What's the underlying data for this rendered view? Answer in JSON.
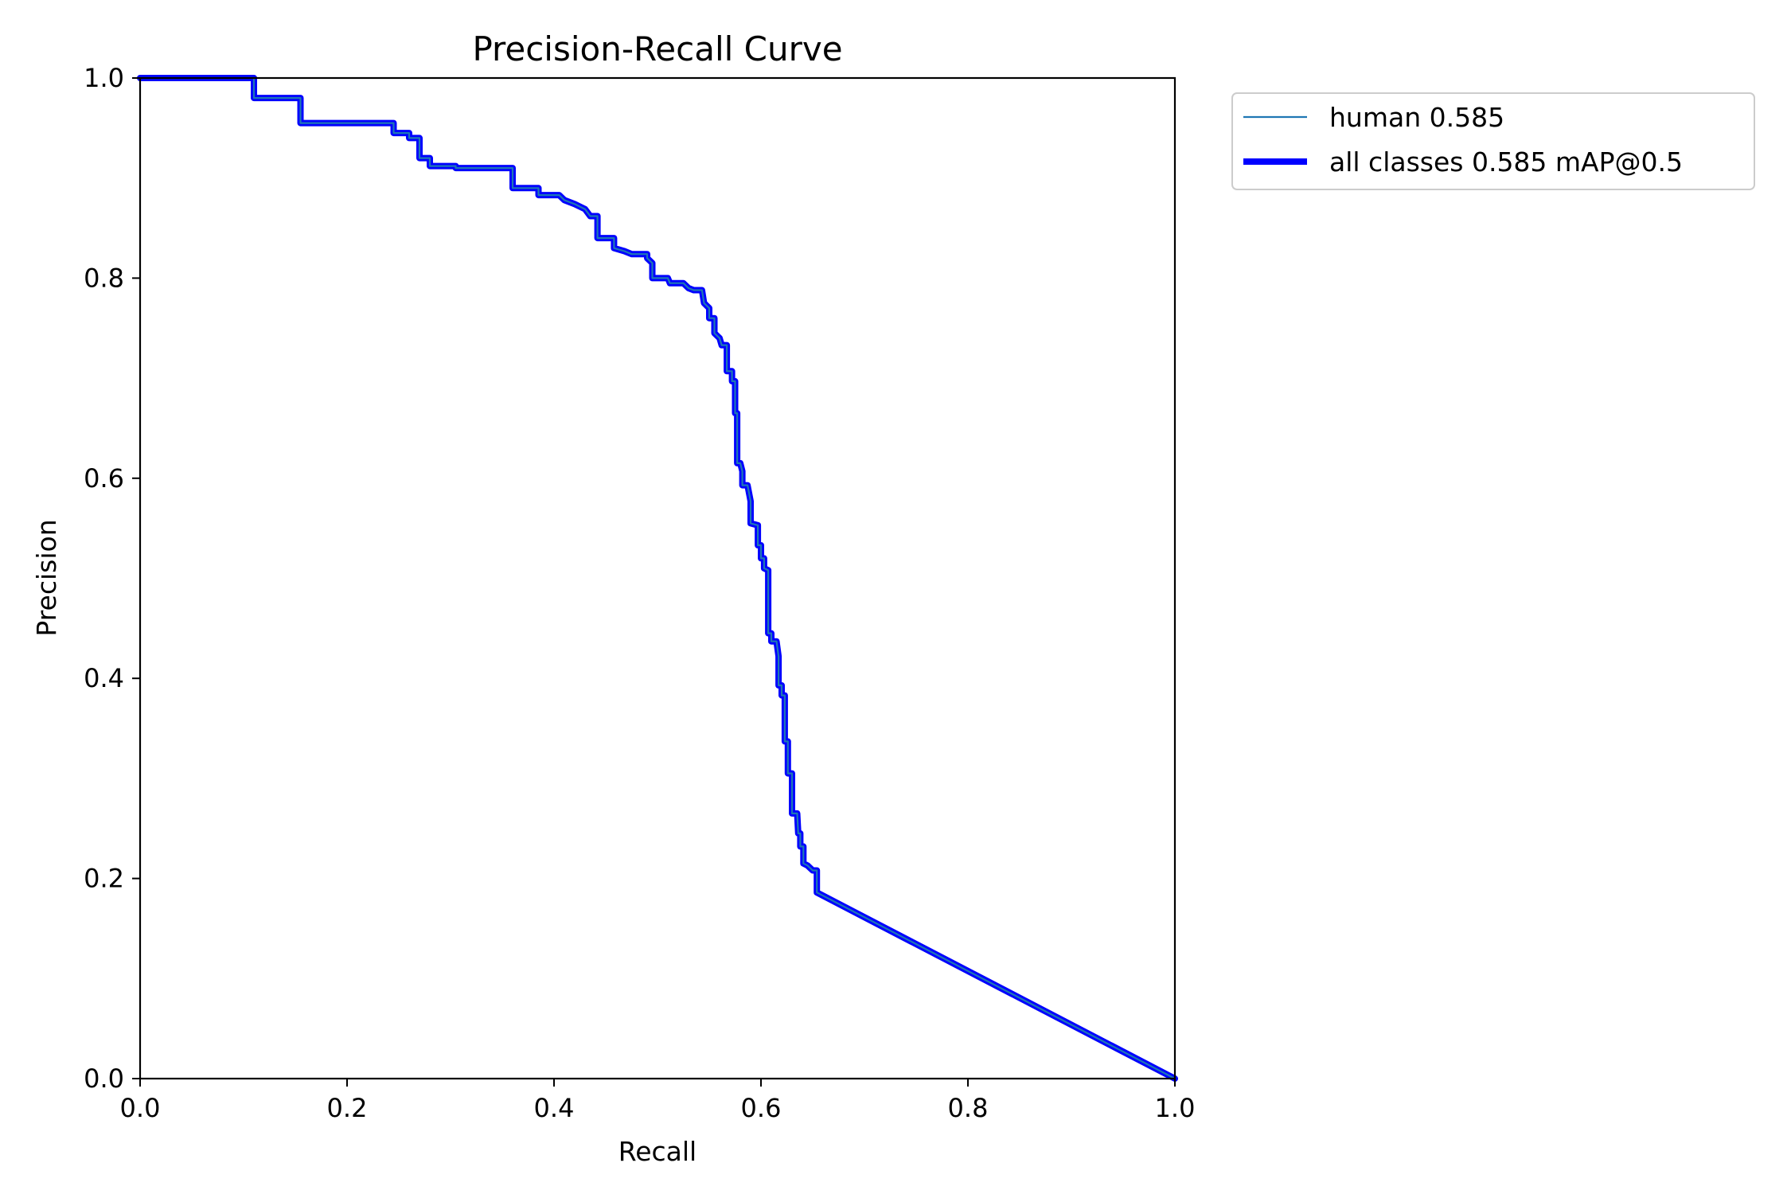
{
  "chart_data": {
    "type": "line",
    "title": "Precision-Recall Curve",
    "xlabel": "Recall",
    "ylabel": "Precision",
    "xlim": [
      0,
      1
    ],
    "ylim": [
      0,
      1
    ],
    "x_ticks": [
      "0.0",
      "0.2",
      "0.4",
      "0.6",
      "0.8",
      "1.0"
    ],
    "y_ticks": [
      "0.0",
      "0.2",
      "0.4",
      "0.6",
      "0.8",
      "1.0"
    ],
    "grid": false,
    "legend_position": "outside-top-right",
    "series": [
      {
        "name": "human 0.585",
        "color": "#1f77b4",
        "style": "thin",
        "points": [
          [
            0,
            1
          ],
          [
            0.11,
            1
          ],
          [
            0.11,
            0.98
          ],
          [
            0.155,
            0.98
          ],
          [
            0.155,
            0.955
          ],
          [
            0.245,
            0.955
          ],
          [
            0.245,
            0.945
          ],
          [
            0.26,
            0.945
          ],
          [
            0.26,
            0.94
          ],
          [
            0.27,
            0.94
          ],
          [
            0.27,
            0.92
          ],
          [
            0.28,
            0.92
          ],
          [
            0.28,
            0.912
          ],
          [
            0.305,
            0.912
          ],
          [
            0.305,
            0.91
          ],
          [
            0.36,
            0.91
          ],
          [
            0.36,
            0.89
          ],
          [
            0.385,
            0.89
          ],
          [
            0.385,
            0.883
          ],
          [
            0.405,
            0.883
          ],
          [
            0.41,
            0.878
          ],
          [
            0.42,
            0.874
          ],
          [
            0.43,
            0.869
          ],
          [
            0.435,
            0.862
          ],
          [
            0.442,
            0.862
          ],
          [
            0.442,
            0.84
          ],
          [
            0.458,
            0.84
          ],
          [
            0.458,
            0.83
          ],
          [
            0.468,
            0.827
          ],
          [
            0.475,
            0.824
          ],
          [
            0.49,
            0.824
          ],
          [
            0.49,
            0.82
          ],
          [
            0.495,
            0.815
          ],
          [
            0.495,
            0.8
          ],
          [
            0.51,
            0.8
          ],
          [
            0.512,
            0.795
          ],
          [
            0.525,
            0.795
          ],
          [
            0.53,
            0.79
          ],
          [
            0.535,
            0.788
          ],
          [
            0.543,
            0.788
          ],
          [
            0.545,
            0.775
          ],
          [
            0.55,
            0.77
          ],
          [
            0.55,
            0.76
          ],
          [
            0.555,
            0.76
          ],
          [
            0.555,
            0.745
          ],
          [
            0.56,
            0.74
          ],
          [
            0.562,
            0.733
          ],
          [
            0.567,
            0.733
          ],
          [
            0.567,
            0.707
          ],
          [
            0.572,
            0.707
          ],
          [
            0.572,
            0.697
          ],
          [
            0.575,
            0.697
          ],
          [
            0.575,
            0.665
          ],
          [
            0.577,
            0.665
          ],
          [
            0.577,
            0.615
          ],
          [
            0.58,
            0.615
          ],
          [
            0.582,
            0.607
          ],
          [
            0.582,
            0.593
          ],
          [
            0.587,
            0.593
          ],
          [
            0.59,
            0.577
          ],
          [
            0.59,
            0.555
          ],
          [
            0.597,
            0.553
          ],
          [
            0.597,
            0.533
          ],
          [
            0.6,
            0.533
          ],
          [
            0.6,
            0.52
          ],
          [
            0.603,
            0.52
          ],
          [
            0.603,
            0.51
          ],
          [
            0.607,
            0.508
          ],
          [
            0.607,
            0.445
          ],
          [
            0.61,
            0.445
          ],
          [
            0.61,
            0.437
          ],
          [
            0.615,
            0.437
          ],
          [
            0.617,
            0.422
          ],
          [
            0.617,
            0.393
          ],
          [
            0.62,
            0.393
          ],
          [
            0.62,
            0.383
          ],
          [
            0.623,
            0.383
          ],
          [
            0.623,
            0.337
          ],
          [
            0.626,
            0.337
          ],
          [
            0.626,
            0.305
          ],
          [
            0.63,
            0.305
          ],
          [
            0.63,
            0.265
          ],
          [
            0.635,
            0.265
          ],
          [
            0.636,
            0.245
          ],
          [
            0.638,
            0.245
          ],
          [
            0.638,
            0.232
          ],
          [
            0.641,
            0.232
          ],
          [
            0.641,
            0.215
          ],
          [
            0.645,
            0.213
          ],
          [
            0.65,
            0.208
          ],
          [
            0.654,
            0.208
          ],
          [
            0.654,
            0.186
          ],
          [
            1,
            0
          ]
        ]
      },
      {
        "name": "all classes 0.585 mAP@0.5",
        "color": "#0000ff",
        "style": "thick",
        "points": [
          [
            0,
            1
          ],
          [
            0.11,
            1
          ],
          [
            0.11,
            0.98
          ],
          [
            0.155,
            0.98
          ],
          [
            0.155,
            0.955
          ],
          [
            0.245,
            0.955
          ],
          [
            0.245,
            0.945
          ],
          [
            0.26,
            0.945
          ],
          [
            0.26,
            0.94
          ],
          [
            0.27,
            0.94
          ],
          [
            0.27,
            0.92
          ],
          [
            0.28,
            0.92
          ],
          [
            0.28,
            0.912
          ],
          [
            0.305,
            0.912
          ],
          [
            0.305,
            0.91
          ],
          [
            0.36,
            0.91
          ],
          [
            0.36,
            0.89
          ],
          [
            0.385,
            0.89
          ],
          [
            0.385,
            0.883
          ],
          [
            0.405,
            0.883
          ],
          [
            0.41,
            0.878
          ],
          [
            0.42,
            0.874
          ],
          [
            0.43,
            0.869
          ],
          [
            0.435,
            0.862
          ],
          [
            0.442,
            0.862
          ],
          [
            0.442,
            0.84
          ],
          [
            0.458,
            0.84
          ],
          [
            0.458,
            0.83
          ],
          [
            0.468,
            0.827
          ],
          [
            0.475,
            0.824
          ],
          [
            0.49,
            0.824
          ],
          [
            0.49,
            0.82
          ],
          [
            0.495,
            0.815
          ],
          [
            0.495,
            0.8
          ],
          [
            0.51,
            0.8
          ],
          [
            0.512,
            0.795
          ],
          [
            0.525,
            0.795
          ],
          [
            0.53,
            0.79
          ],
          [
            0.535,
            0.788
          ],
          [
            0.543,
            0.788
          ],
          [
            0.545,
            0.775
          ],
          [
            0.55,
            0.77
          ],
          [
            0.55,
            0.76
          ],
          [
            0.555,
            0.76
          ],
          [
            0.555,
            0.745
          ],
          [
            0.56,
            0.74
          ],
          [
            0.562,
            0.733
          ],
          [
            0.567,
            0.733
          ],
          [
            0.567,
            0.707
          ],
          [
            0.572,
            0.707
          ],
          [
            0.572,
            0.697
          ],
          [
            0.575,
            0.697
          ],
          [
            0.575,
            0.665
          ],
          [
            0.577,
            0.665
          ],
          [
            0.577,
            0.615
          ],
          [
            0.58,
            0.615
          ],
          [
            0.582,
            0.607
          ],
          [
            0.582,
            0.593
          ],
          [
            0.587,
            0.593
          ],
          [
            0.59,
            0.577
          ],
          [
            0.59,
            0.555
          ],
          [
            0.597,
            0.553
          ],
          [
            0.597,
            0.533
          ],
          [
            0.6,
            0.533
          ],
          [
            0.6,
            0.52
          ],
          [
            0.603,
            0.52
          ],
          [
            0.603,
            0.51
          ],
          [
            0.607,
            0.508
          ],
          [
            0.607,
            0.445
          ],
          [
            0.61,
            0.445
          ],
          [
            0.61,
            0.437
          ],
          [
            0.615,
            0.437
          ],
          [
            0.617,
            0.422
          ],
          [
            0.617,
            0.393
          ],
          [
            0.62,
            0.393
          ],
          [
            0.62,
            0.383
          ],
          [
            0.623,
            0.383
          ],
          [
            0.623,
            0.337
          ],
          [
            0.626,
            0.337
          ],
          [
            0.626,
            0.305
          ],
          [
            0.63,
            0.305
          ],
          [
            0.63,
            0.265
          ],
          [
            0.635,
            0.265
          ],
          [
            0.636,
            0.245
          ],
          [
            0.638,
            0.245
          ],
          [
            0.638,
            0.232
          ],
          [
            0.641,
            0.232
          ],
          [
            0.641,
            0.215
          ],
          [
            0.645,
            0.213
          ],
          [
            0.65,
            0.208
          ],
          [
            0.654,
            0.208
          ],
          [
            0.654,
            0.186
          ],
          [
            1,
            0
          ]
        ]
      }
    ]
  }
}
